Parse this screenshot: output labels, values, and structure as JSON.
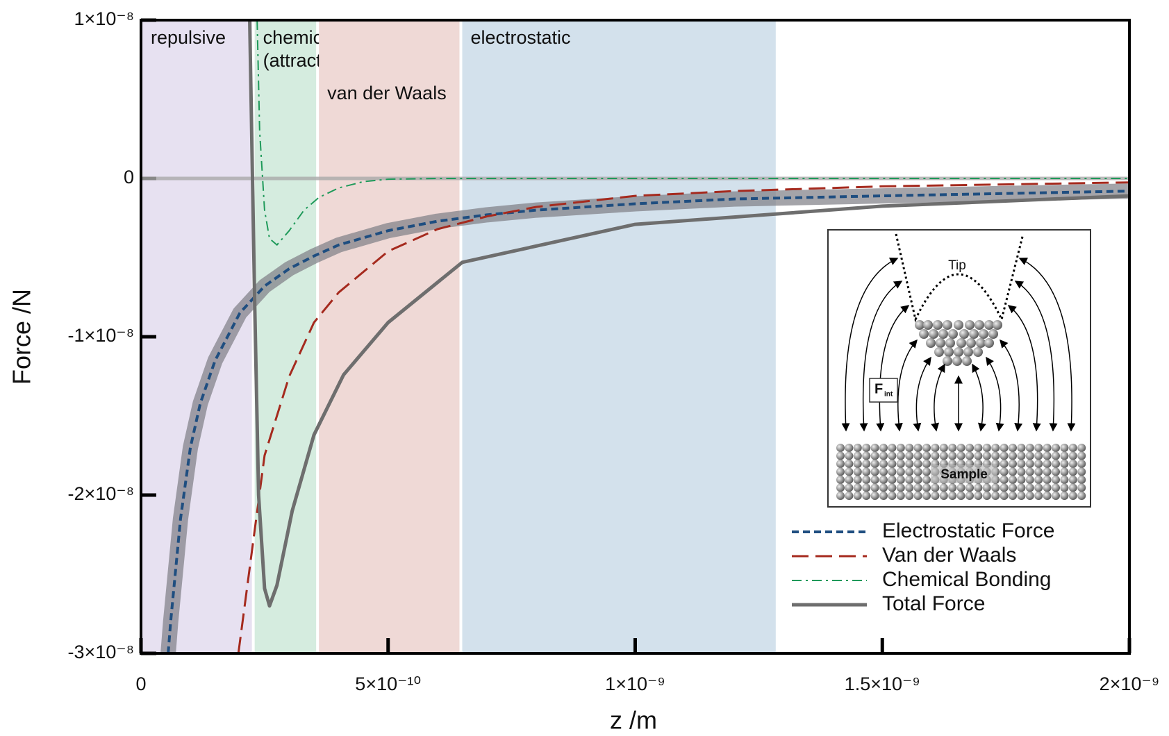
{
  "chart_data": {
    "type": "line",
    "xlabel": "z /m",
    "ylabel": "Force /N",
    "xlim": [
      0,
      2e-09
    ],
    "ylim": [
      -3e-08,
      1e-08
    ],
    "xticks": [
      0,
      {
        "value": 5e-10,
        "label": "5×10⁻¹⁰"
      },
      {
        "value": 1e-09,
        "label": "1×10⁻⁹"
      },
      {
        "value": 1.5e-09,
        "label": "1.5×10⁻⁹"
      },
      {
        "value": 2e-09,
        "label": "2×10⁻⁹"
      }
    ],
    "yticks": [
      {
        "value": 1e-08,
        "label": "1×10⁻⁸"
      },
      0,
      {
        "value": -1e-08,
        "label": "-1×10⁻⁸"
      },
      {
        "value": -2e-08,
        "label": "-2×10⁻⁸"
      },
      {
        "value": -3e-08,
        "label": "-3×10⁻⁸"
      }
    ],
    "legend": "lower right",
    "regions": [
      {
        "label": [
          "repulsive"
        ],
        "start": 0,
        "end": 2.3e-10,
        "color": "#e7e1f1"
      },
      {
        "label": [
          "chemical",
          "(attractive)"
        ],
        "start": 2.3e-10,
        "end": 3.6e-10,
        "color": "#d5ecdf"
      },
      {
        "label": [
          "van der Waals"
        ],
        "start": 3.6e-10,
        "end": 6.5e-10,
        "color": "#efd9d6"
      },
      {
        "label": [
          "electrostatic"
        ],
        "start": 6.5e-10,
        "end": 1.29e-09,
        "color": "#d3e1ec"
      }
    ],
    "series": [
      {
        "name": "Electrostatic Force",
        "color": "#1f4e80",
        "style": "dashed",
        "highlight": "#7d7d85",
        "x": [
          5.5e-11,
          6e-11,
          8e-11,
          1e-10,
          1.2e-10,
          1.5e-10,
          2e-10,
          2.5e-10,
          3e-10,
          3.5e-10,
          4e-10,
          5e-10,
          6e-10,
          7e-10,
          8e-10,
          1e-09,
          1.2e-09,
          1.5e-09,
          2e-09
        ],
        "values": [
          -3e-08,
          -2.8e-08,
          -2.15e-08,
          -1.7e-08,
          -1.42e-08,
          -1.15e-08,
          -8.5e-09,
          -6.8e-09,
          -5.7e-09,
          -4.9e-09,
          -4.2e-09,
          -3.3e-09,
          -2.7e-09,
          -2.3e-09,
          -2e-09,
          -1.6e-09,
          -1.3e-09,
          -1.1e-09,
          -8e-10
        ]
      },
      {
        "name": "Van der Waals",
        "color": "#a52a1e",
        "style": "long-dash",
        "x": [
          1.97e-10,
          2.5e-10,
          3e-10,
          3.5e-10,
          4e-10,
          5e-10,
          6e-10,
          7e-10,
          8e-10,
          1e-09,
          1.2e-09,
          1.5e-09,
          2e-09
        ],
        "values": [
          -3e-08,
          -1.75e-08,
          -1.25e-08,
          -9.1e-09,
          -7.2e-09,
          -4.6e-09,
          -3.2e-09,
          -2.4e-09,
          -1.8e-09,
          -1.1e-09,
          -8e-10,
          -5e-10,
          -2.5e-10
        ]
      },
      {
        "name": "Chemical Bonding",
        "color": "#1f9a5a",
        "style": "dash-dot",
        "x": [
          2.35e-10,
          2.4e-10,
          2.5e-10,
          2.6e-10,
          2.75e-10,
          3e-10,
          3.3e-10,
          3.6e-10,
          4e-10,
          4.5e-10,
          5e-10,
          6e-10,
          1e-09,
          2e-09
        ],
        "values": [
          1e-08,
          3e-09,
          -2e-09,
          -3.8e-09,
          -4.2e-09,
          -3.3e-09,
          -2e-09,
          -1.2e-09,
          -6e-10,
          -2e-10,
          -5e-11,
          0,
          0,
          0
        ]
      },
      {
        "name": "Total Force",
        "color": "#6e6e6e",
        "style": "solid",
        "x": [
          2.2e-10,
          2.3e-10,
          2.38e-10,
          2.5e-10,
          2.6e-10,
          2.75e-10,
          3.06e-10,
          3.5e-10,
          4.1e-10,
          5e-10,
          6.5e-10,
          1e-09,
          1.5e-09,
          2e-09
        ],
        "values": [
          1e-08,
          -7.7e-09,
          -2e-08,
          -2.59e-08,
          -2.7e-08,
          -2.57e-08,
          -2.1e-08,
          -1.62e-08,
          -1.24e-08,
          -9.1e-09,
          -5.3e-09,
          -2.9e-09,
          -1.75e-09,
          -1.1e-09
        ]
      }
    ],
    "inset": {
      "tip": "Tip",
      "force": "F",
      "force_sub": "int",
      "sample": "Sample"
    }
  }
}
